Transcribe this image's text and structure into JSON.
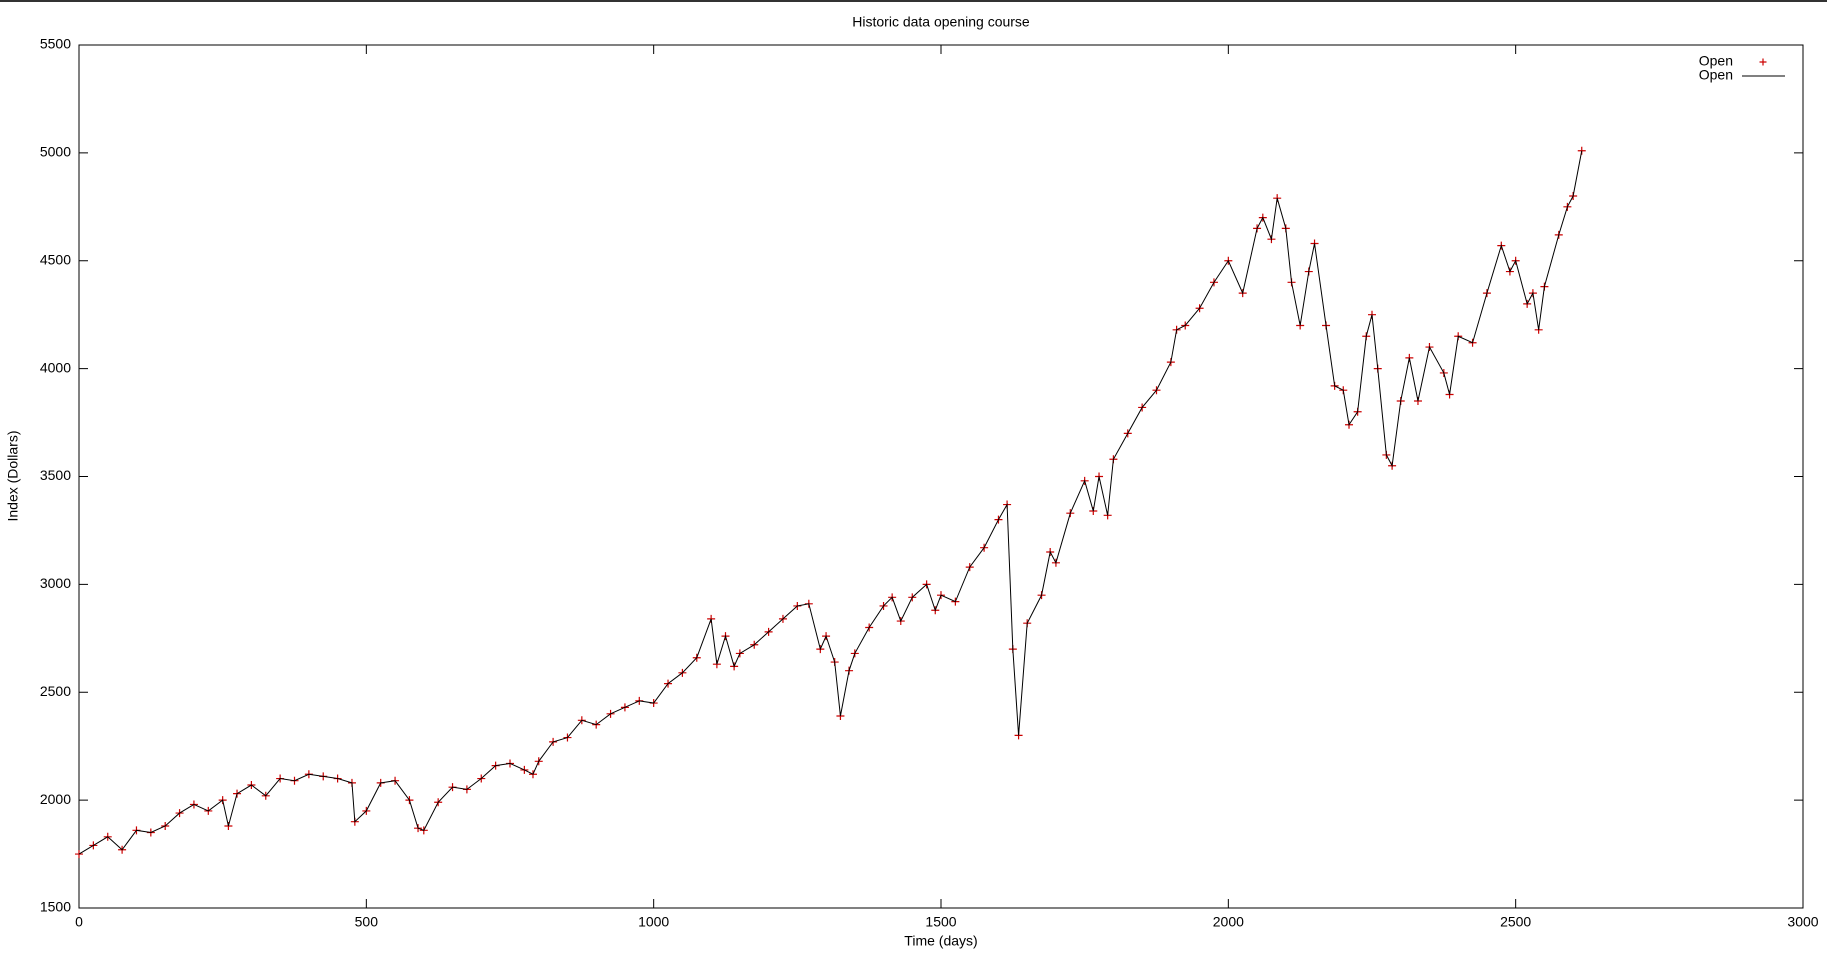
{
  "chart_data": {
    "type": "linespoints",
    "title": "Historic data opening course",
    "x_label": "Time (days)",
    "y_label": "Index (Dollars)",
    "xlim": [
      0,
      3000
    ],
    "xticks": [
      0,
      500,
      1000,
      1500,
      2000,
      2500,
      3000
    ],
    "ylim": [
      1500,
      5500
    ],
    "yticks": [
      1500,
      2000,
      2500,
      3000,
      3500,
      4000,
      4500,
      5000,
      5500
    ],
    "legend": "top-right",
    "x": [
      0,
      25,
      50,
      75,
      100,
      125,
      150,
      175,
      200,
      225,
      250,
      260,
      275,
      300,
      325,
      350,
      375,
      400,
      425,
      450,
      475,
      480,
      500,
      525,
      550,
      575,
      590,
      600,
      625,
      650,
      675,
      700,
      725,
      750,
      775,
      790,
      800,
      825,
      850,
      875,
      900,
      925,
      950,
      975,
      1000,
      1025,
      1050,
      1075,
      1100,
      1110,
      1125,
      1140,
      1150,
      1175,
      1200,
      1225,
      1250,
      1270,
      1290,
      1300,
      1315,
      1325,
      1340,
      1350,
      1375,
      1400,
      1415,
      1430,
      1450,
      1475,
      1490,
      1500,
      1525,
      1550,
      1575,
      1600,
      1615,
      1625,
      1635,
      1650,
      1675,
      1690,
      1700,
      1725,
      1750,
      1765,
      1775,
      1790,
      1800,
      1825,
      1850,
      1875,
      1900,
      1910,
      1925,
      1950,
      1975,
      2000,
      2025,
      2050,
      2060,
      2075,
      2085,
      2100,
      2110,
      2125,
      2140,
      2150,
      2170,
      2185,
      2200,
      2210,
      2225,
      2240,
      2250,
      2260,
      2275,
      2285,
      2300,
      2315,
      2330,
      2350,
      2375,
      2385,
      2400,
      2425,
      2450,
      2475,
      2490,
      2500,
      2520,
      2530,
      2540,
      2550,
      2575,
      2590,
      2600,
      2615
    ],
    "series": [
      {
        "name": "Open",
        "color": "#cc0000",
        "style": "points",
        "values": [
          1750,
          1790,
          1830,
          1770,
          1860,
          1850,
          1880,
          1940,
          1980,
          1950,
          2000,
          1880,
          2030,
          2070,
          2020,
          2100,
          2090,
          2120,
          2110,
          2100,
          2080,
          1900,
          1950,
          2080,
          2090,
          2000,
          1870,
          1860,
          1990,
          2060,
          2050,
          2100,
          2160,
          2170,
          2140,
          2120,
          2180,
          2270,
          2290,
          2370,
          2350,
          2400,
          2430,
          2460,
          2450,
          2540,
          2590,
          2660,
          2840,
          2630,
          2760,
          2620,
          2680,
          2720,
          2780,
          2840,
          2900,
          2910,
          2700,
          2760,
          2640,
          2390,
          2600,
          2680,
          2800,
          2900,
          2940,
          2830,
          2940,
          3000,
          2880,
          2950,
          2920,
          3080,
          3170,
          3300,
          3370,
          2700,
          2300,
          2820,
          2950,
          3150,
          3100,
          3330,
          3480,
          3340,
          3500,
          3320,
          3580,
          3700,
          3820,
          3900,
          4030,
          4180,
          4200,
          4280,
          4400,
          4500,
          4350,
          4650,
          4700,
          4600,
          4790,
          4650,
          4400,
          4200,
          4450,
          4580,
          4200,
          3920,
          3900,
          3740,
          3800,
          4150,
          4250,
          4000,
          3600,
          3550,
          3850,
          4050,
          3850,
          4100,
          3980,
          3880,
          4150,
          4120,
          4350,
          4570,
          4450,
          4500,
          4300,
          4350,
          4180,
          4380,
          4620,
          4750,
          4800,
          5010
        ]
      },
      {
        "name": "Open",
        "color": "#000000",
        "style": "line",
        "values": [
          1750,
          1790,
          1830,
          1770,
          1860,
          1850,
          1880,
          1940,
          1980,
          1950,
          2000,
          1880,
          2030,
          2070,
          2020,
          2100,
          2090,
          2120,
          2110,
          2100,
          2080,
          1900,
          1950,
          2080,
          2090,
          2000,
          1870,
          1860,
          1990,
          2060,
          2050,
          2100,
          2160,
          2170,
          2140,
          2120,
          2180,
          2270,
          2290,
          2370,
          2350,
          2400,
          2430,
          2460,
          2450,
          2540,
          2590,
          2660,
          2840,
          2630,
          2760,
          2620,
          2680,
          2720,
          2780,
          2840,
          2900,
          2910,
          2700,
          2760,
          2640,
          2390,
          2600,
          2680,
          2800,
          2900,
          2940,
          2830,
          2940,
          3000,
          2880,
          2950,
          2920,
          3080,
          3170,
          3300,
          3370,
          2700,
          2300,
          2820,
          2950,
          3150,
          3100,
          3330,
          3480,
          3340,
          3500,
          3320,
          3580,
          3700,
          3820,
          3900,
          4030,
          4180,
          4200,
          4280,
          4400,
          4500,
          4350,
          4650,
          4700,
          4600,
          4790,
          4650,
          4400,
          4200,
          4450,
          4580,
          4200,
          3920,
          3900,
          3740,
          3800,
          4150,
          4250,
          4000,
          3600,
          3550,
          3850,
          4050,
          3850,
          4100,
          3980,
          3880,
          4150,
          4120,
          4350,
          4570,
          4450,
          4500,
          4300,
          4350,
          4180,
          4380,
          4620,
          4750,
          4800,
          5010
        ]
      }
    ]
  }
}
